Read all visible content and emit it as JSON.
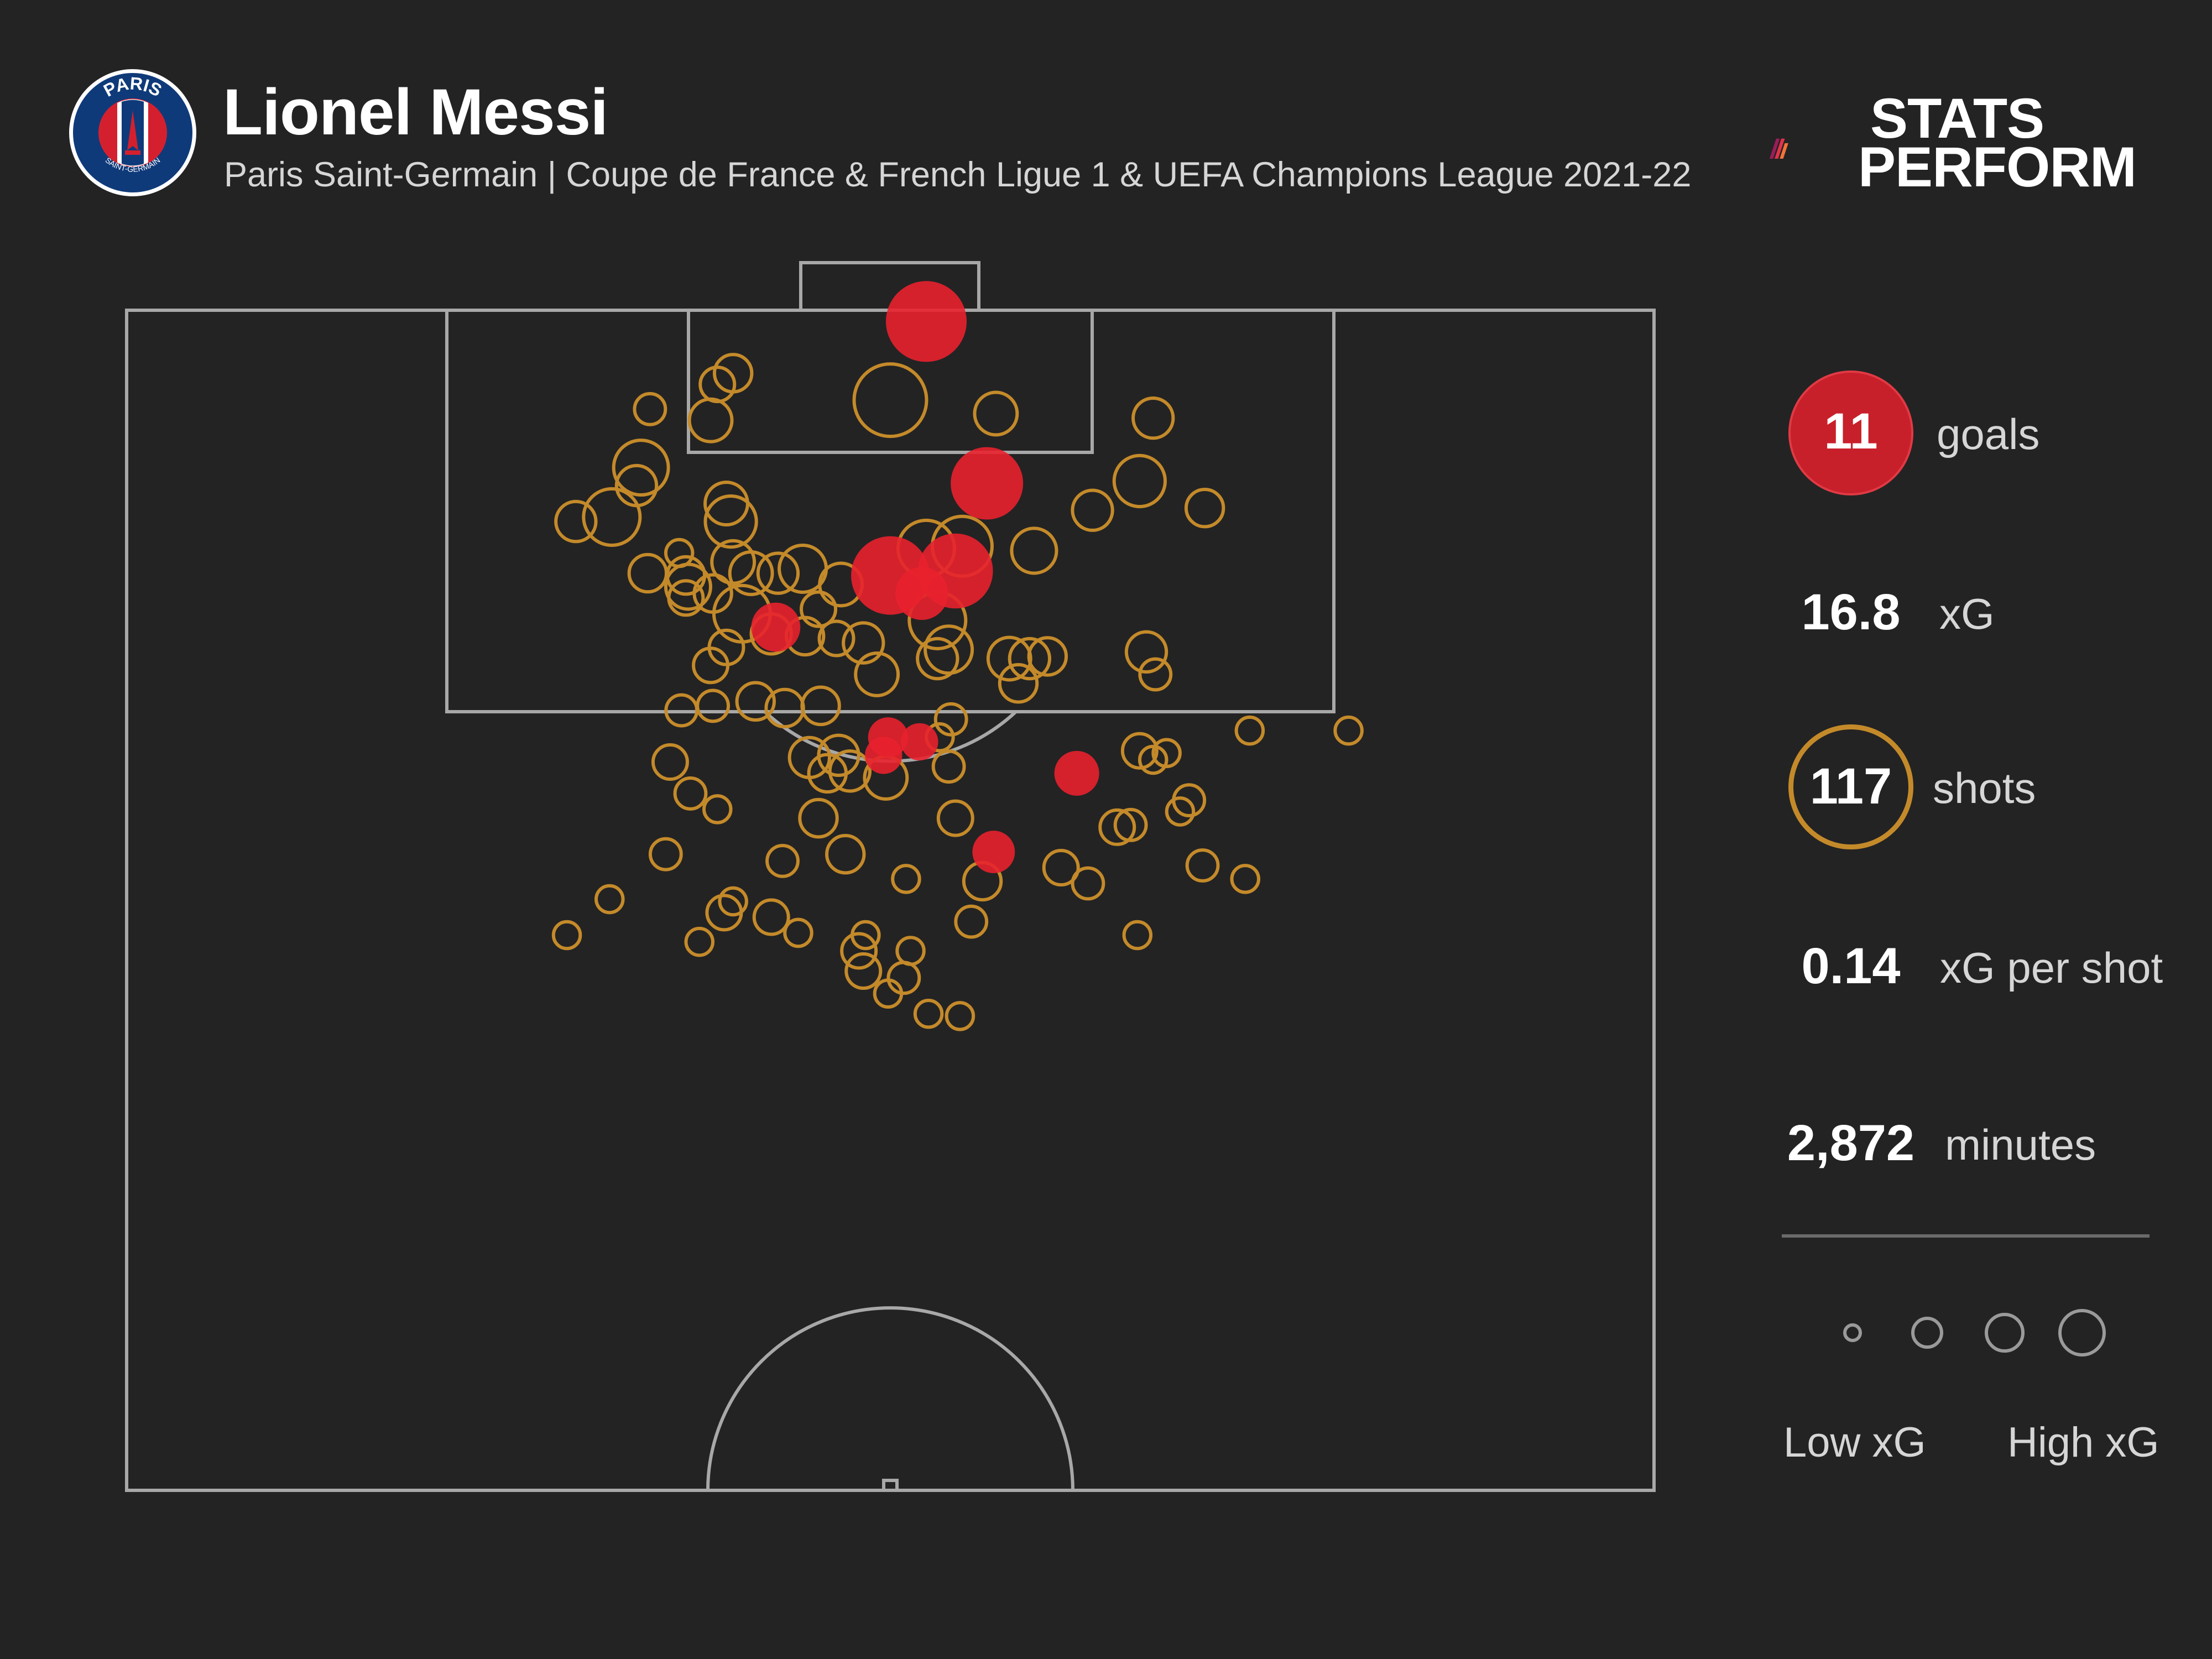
{
  "header": {
    "title": "Lionel Messi",
    "subtitle": "Paris Saint-Germain | Coupe de France & French Ligue 1 & UEFA Champions League 2021-22",
    "crest_text_top": "PARIS",
    "crest_text_bottom": "SAINT-GERMAIN",
    "brand_line1": "STATS",
    "brand_line2": "PERFORM"
  },
  "stats": {
    "goals_value": "11",
    "goals_label": "goals",
    "xg_value": "16.8",
    "xg_label": "xG",
    "shots_value": "117",
    "shots_label": "shots",
    "xg_per_shot_value": "0.14",
    "xg_per_shot_label": "xG per shot",
    "minutes_value": "2,872",
    "minutes_label": "minutes"
  },
  "legend": {
    "low_label": "Low xG",
    "high_label": "High xG",
    "sizes": [
      0.05,
      0.15,
      0.25,
      0.35
    ]
  },
  "colors": {
    "background": "#232323",
    "pitch_lines": "#a8a8a8",
    "goal": "#e8212d",
    "shot": "#c48a2a",
    "text": "#ffffff",
    "subtext": "#d6d6d6"
  },
  "chart_data": {
    "type": "scatter",
    "title": "Lionel Messi",
    "subtitle": "Paris Saint-Germain | Coupe de France & French Ligue 1 & UEFA Champions League 2021-22",
    "x_axis": "pitch width, 0 = left touchline, 68 = right touchline (m)",
    "y_axis": "distance from goal line (m)",
    "xlim": [
      0,
      68
    ],
    "ylim": [
      0,
      52.5
    ],
    "grid": false,
    "legend": "right",
    "series": [
      {
        "name": "goals",
        "points": [
          {
            "x": 35.6,
            "y": 0.5,
            "xg": 0.32
          },
          {
            "x": 38.3,
            "y": 7.7,
            "xg": 0.25
          },
          {
            "x": 34.0,
            "y": 11.8,
            "xg": 0.3
          },
          {
            "x": 36.9,
            "y": 11.6,
            "xg": 0.27
          },
          {
            "x": 35.4,
            "y": 12.6,
            "xg": 0.12
          },
          {
            "x": 28.9,
            "y": 14.1,
            "xg": 0.1
          },
          {
            "x": 33.9,
            "y": 19.0,
            "xg": 0.06
          },
          {
            "x": 35.3,
            "y": 19.2,
            "xg": 0.05
          },
          {
            "x": 42.3,
            "y": 20.6,
            "xg": 0.08
          },
          {
            "x": 38.6,
            "y": 24.1,
            "xg": 0.07
          },
          {
            "x": 33.7,
            "y": 19.8,
            "xg": 0.05
          }
        ]
      },
      {
        "name": "shots",
        "points": [
          {
            "x": 34.0,
            "y": 4.0,
            "xg": 0.25
          },
          {
            "x": 27.0,
            "y": 2.8,
            "xg": 0.05
          },
          {
            "x": 26.3,
            "y": 3.3,
            "xg": 0.04
          },
          {
            "x": 23.3,
            "y": 4.4,
            "xg": 0.03
          },
          {
            "x": 26.0,
            "y": 4.9,
            "xg": 0.07
          },
          {
            "x": 38.7,
            "y": 4.6,
            "xg": 0.07
          },
          {
            "x": 45.7,
            "y": 4.8,
            "xg": 0.06
          },
          {
            "x": 22.9,
            "y": 7.0,
            "xg": 0.13
          },
          {
            "x": 22.7,
            "y": 7.8,
            "xg": 0.06
          },
          {
            "x": 20.0,
            "y": 9.4,
            "xg": 0.06
          },
          {
            "x": 21.6,
            "y": 9.2,
            "xg": 0.14
          },
          {
            "x": 26.7,
            "y": 8.6,
            "xg": 0.07
          },
          {
            "x": 26.9,
            "y": 9.4,
            "xg": 0.11
          },
          {
            "x": 45.1,
            "y": 7.6,
            "xg": 0.11
          },
          {
            "x": 43.0,
            "y": 8.9,
            "xg": 0.06
          },
          {
            "x": 48.0,
            "y": 8.8,
            "xg": 0.05
          },
          {
            "x": 24.6,
            "y": 10.8,
            "xg": 0.02
          },
          {
            "x": 23.2,
            "y": 11.7,
            "xg": 0.05
          },
          {
            "x": 24.9,
            "y": 11.8,
            "xg": 0.05
          },
          {
            "x": 27.0,
            "y": 11.2,
            "xg": 0.07
          },
          {
            "x": 27.8,
            "y": 11.7,
            "xg": 0.07
          },
          {
            "x": 29.0,
            "y": 11.7,
            "xg": 0.06
          },
          {
            "x": 30.1,
            "y": 11.5,
            "xg": 0.09
          },
          {
            "x": 26.1,
            "y": 12.6,
            "xg": 0.05
          },
          {
            "x": 31.8,
            "y": 12.2,
            "xg": 0.07
          },
          {
            "x": 35.6,
            "y": 10.6,
            "xg": 0.14
          },
          {
            "x": 37.2,
            "y": 10.5,
            "xg": 0.16
          },
          {
            "x": 40.4,
            "y": 10.7,
            "xg": 0.08
          },
          {
            "x": 25.0,
            "y": 12.3,
            "xg": 0.08
          },
          {
            "x": 24.9,
            "y": 12.8,
            "xg": 0.04
          },
          {
            "x": 27.4,
            "y": 13.5,
            "xg": 0.14
          },
          {
            "x": 30.8,
            "y": 13.3,
            "xg": 0.04
          },
          {
            "x": 28.7,
            "y": 14.4,
            "xg": 0.06
          },
          {
            "x": 30.2,
            "y": 14.5,
            "xg": 0.05
          },
          {
            "x": 31.6,
            "y": 14.6,
            "xg": 0.04
          },
          {
            "x": 32.8,
            "y": 14.8,
            "xg": 0.06
          },
          {
            "x": 36.1,
            "y": 13.8,
            "xg": 0.14
          },
          {
            "x": 36.6,
            "y": 15.1,
            "xg": 0.09
          },
          {
            "x": 36.1,
            "y": 15.5,
            "xg": 0.06
          },
          {
            "x": 39.3,
            "y": 15.5,
            "xg": 0.07
          },
          {
            "x": 40.2,
            "y": 15.5,
            "xg": 0.06
          },
          {
            "x": 41.0,
            "y": 15.4,
            "xg": 0.05
          },
          {
            "x": 26.7,
            "y": 15.0,
            "xg": 0.04
          },
          {
            "x": 26.0,
            "y": 15.8,
            "xg": 0.04
          },
          {
            "x": 33.4,
            "y": 16.2,
            "xg": 0.07
          },
          {
            "x": 39.7,
            "y": 16.6,
            "xg": 0.05
          },
          {
            "x": 45.4,
            "y": 15.2,
            "xg": 0.06
          },
          {
            "x": 45.8,
            "y": 16.2,
            "xg": 0.03
          },
          {
            "x": 24.7,
            "y": 17.8,
            "xg": 0.03
          },
          {
            "x": 26.1,
            "y": 17.6,
            "xg": 0.03
          },
          {
            "x": 28.0,
            "y": 17.4,
            "xg": 0.05
          },
          {
            "x": 29.3,
            "y": 17.7,
            "xg": 0.05
          },
          {
            "x": 30.9,
            "y": 17.6,
            "xg": 0.05
          },
          {
            "x": 36.7,
            "y": 18.2,
            "xg": 0.03
          },
          {
            "x": 50.0,
            "y": 18.7,
            "xg": 0.02
          },
          {
            "x": 54.4,
            "y": 18.7,
            "xg": 0.02
          },
          {
            "x": 24.2,
            "y": 20.1,
            "xg": 0.04
          },
          {
            "x": 30.4,
            "y": 19.9,
            "xg": 0.06
          },
          {
            "x": 31.7,
            "y": 19.8,
            "xg": 0.06
          },
          {
            "x": 31.2,
            "y": 20.6,
            "xg": 0.05
          },
          {
            "x": 32.2,
            "y": 20.5,
            "xg": 0.06
          },
          {
            "x": 33.8,
            "y": 20.8,
            "xg": 0.07
          },
          {
            "x": 36.2,
            "y": 19.0,
            "xg": 0.02
          },
          {
            "x": 36.6,
            "y": 20.3,
            "xg": 0.03
          },
          {
            "x": 45.1,
            "y": 19.6,
            "xg": 0.04
          },
          {
            "x": 45.7,
            "y": 20.0,
            "xg": 0.02
          },
          {
            "x": 46.3,
            "y": 19.7,
            "xg": 0.02
          },
          {
            "x": 25.1,
            "y": 21.5,
            "xg": 0.03
          },
          {
            "x": 26.3,
            "y": 22.2,
            "xg": 0.02
          },
          {
            "x": 30.8,
            "y": 22.6,
            "xg": 0.05
          },
          {
            "x": 36.9,
            "y": 22.6,
            "xg": 0.04
          },
          {
            "x": 44.1,
            "y": 23.0,
            "xg": 0.04
          },
          {
            "x": 44.7,
            "y": 22.9,
            "xg": 0.03
          },
          {
            "x": 46.9,
            "y": 22.3,
            "xg": 0.02
          },
          {
            "x": 47.3,
            "y": 21.8,
            "xg": 0.03
          },
          {
            "x": 24.0,
            "y": 24.2,
            "xg": 0.03
          },
          {
            "x": 29.2,
            "y": 24.5,
            "xg": 0.03
          },
          {
            "x": 32.0,
            "y": 24.2,
            "xg": 0.05
          },
          {
            "x": 41.6,
            "y": 24.8,
            "xg": 0.04
          },
          {
            "x": 47.9,
            "y": 24.7,
            "xg": 0.03
          },
          {
            "x": 34.7,
            "y": 25.3,
            "xg": 0.02
          },
          {
            "x": 38.1,
            "y": 25.4,
            "xg": 0.05
          },
          {
            "x": 42.8,
            "y": 25.5,
            "xg": 0.03
          },
          {
            "x": 49.8,
            "y": 25.3,
            "xg": 0.02
          },
          {
            "x": 27.0,
            "y": 26.3,
            "xg": 0.02
          },
          {
            "x": 26.6,
            "y": 26.8,
            "xg": 0.04
          },
          {
            "x": 28.7,
            "y": 27.0,
            "xg": 0.04
          },
          {
            "x": 21.5,
            "y": 26.2,
            "xg": 0.02
          },
          {
            "x": 37.6,
            "y": 27.2,
            "xg": 0.03
          },
          {
            "x": 32.9,
            "y": 27.8,
            "xg": 0.02
          },
          {
            "x": 19.6,
            "y": 27.8,
            "xg": 0.02
          },
          {
            "x": 25.5,
            "y": 28.1,
            "xg": 0.02
          },
          {
            "x": 29.9,
            "y": 27.7,
            "xg": 0.02
          },
          {
            "x": 32.6,
            "y": 28.5,
            "xg": 0.04
          },
          {
            "x": 34.9,
            "y": 28.5,
            "xg": 0.02
          },
          {
            "x": 45.0,
            "y": 27.8,
            "xg": 0.02
          },
          {
            "x": 32.8,
            "y": 29.4,
            "xg": 0.04
          },
          {
            "x": 34.6,
            "y": 29.7,
            "xg": 0.03
          },
          {
            "x": 33.9,
            "y": 30.4,
            "xg": 0.02
          },
          {
            "x": 35.7,
            "y": 31.3,
            "xg": 0.02
          },
          {
            "x": 37.1,
            "y": 31.4,
            "xg": 0.02
          }
        ]
      }
    ]
  }
}
